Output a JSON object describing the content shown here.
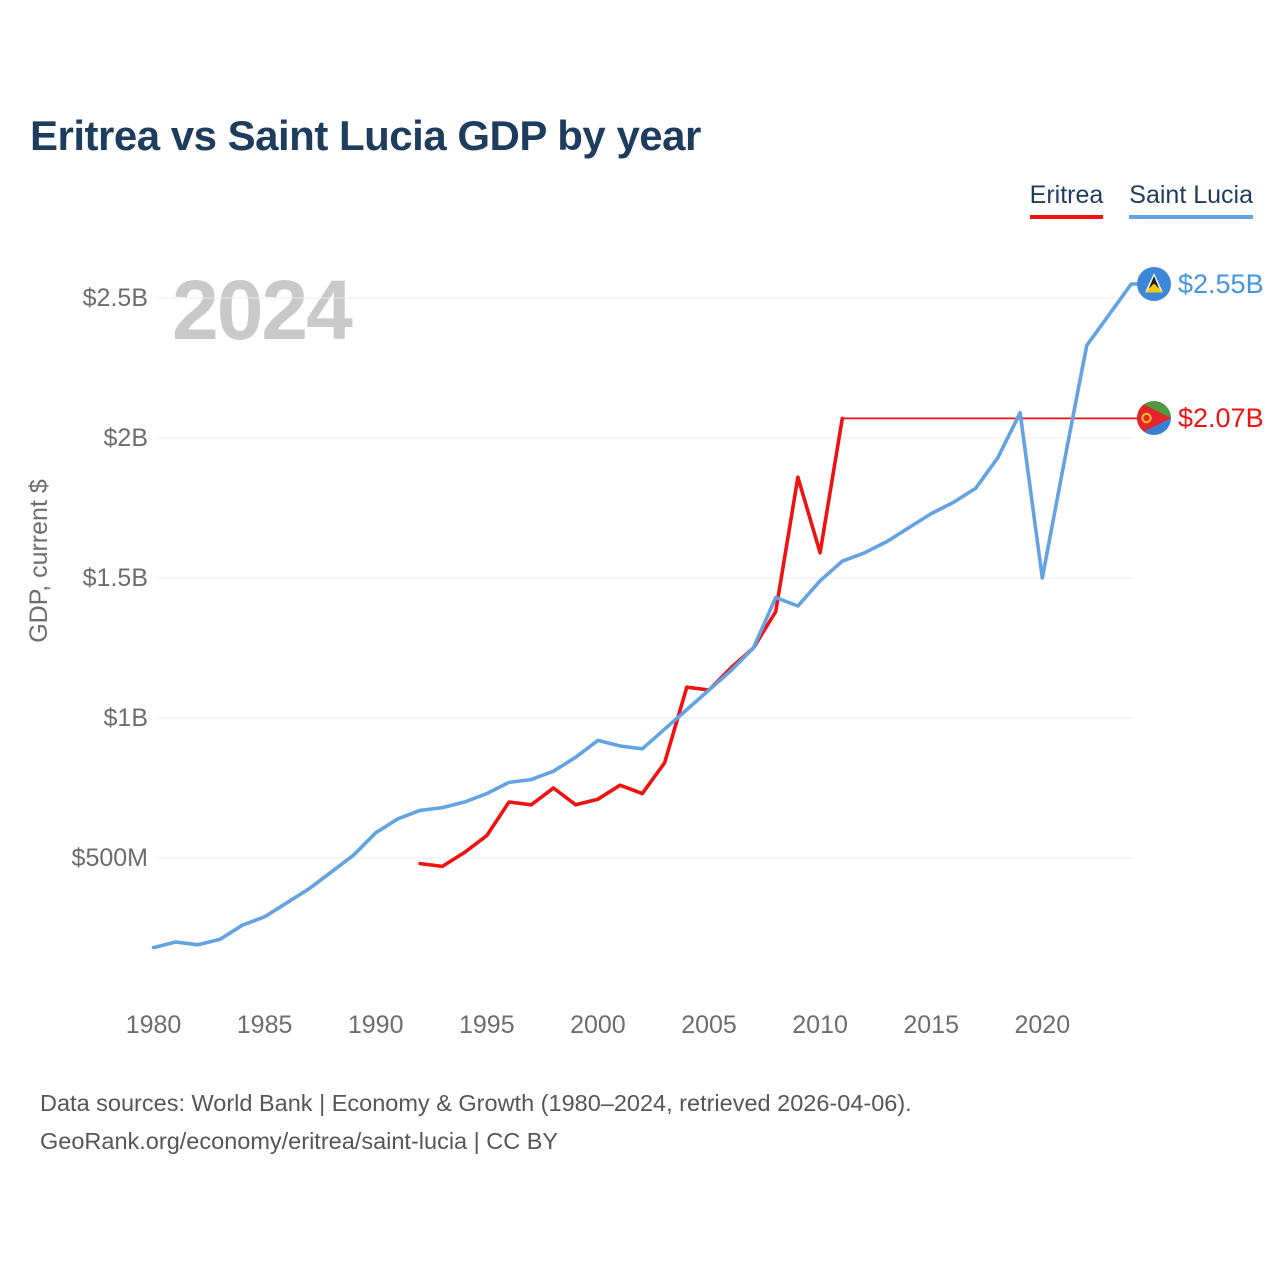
{
  "title": "Eritrea vs Saint Lucia GDP by year",
  "watermark": "2024",
  "legend": {
    "items": [
      {
        "label": "Eritrea",
        "color": "#f01212"
      },
      {
        "label": "Saint Lucia",
        "color": "#64a3e2"
      }
    ]
  },
  "y_axis": {
    "label": "GDP, current $"
  },
  "end_labels": [
    {
      "series": "Saint Lucia",
      "text": "$2.55B",
      "value": 2.55,
      "color": "#4595e6",
      "flag": "saint-lucia"
    },
    {
      "series": "Eritrea",
      "text": "$2.07B",
      "value": 2.07,
      "color": "#f01212",
      "flag": "eritrea"
    }
  ],
  "footer": {
    "line1": "Data sources: World Bank | Economy & Growth (1980–2024, retrieved 2026-04-06).",
    "line2": "GeoRank.org/economy/eritrea/saint-lucia | CC BY"
  },
  "chart_data": {
    "type": "line",
    "title": "Eritrea vs Saint Lucia GDP by year",
    "ylabel": "GDP, current $",
    "unit": "billions of current US$",
    "x_range": [
      1980,
      2024
    ],
    "ylim": [
      0.1,
      2.6
    ],
    "grid": true,
    "legend_position": "top-right",
    "x_ticks": [
      1980,
      1985,
      1990,
      1995,
      2000,
      2005,
      2010,
      2015,
      2020
    ],
    "y_ticks": [
      {
        "value": 0.5,
        "label": "$500M"
      },
      {
        "value": 1.0,
        "label": "$1B"
      },
      {
        "value": 1.5,
        "label": "$1.5B"
      },
      {
        "value": 2.0,
        "label": "$2B"
      },
      {
        "value": 2.5,
        "label": "$2.5B"
      }
    ],
    "series": [
      {
        "name": "Eritrea",
        "color": "#f01212",
        "flat_carried_forward_from": 2011,
        "years": [
          1992,
          1993,
          1994,
          1995,
          1996,
          1997,
          1998,
          1999,
          2000,
          2001,
          2002,
          2003,
          2004,
          2005,
          2006,
          2007,
          2008,
          2009,
          2010,
          2011,
          2012,
          2013,
          2014,
          2015,
          2016,
          2017,
          2018,
          2019,
          2020,
          2021,
          2022,
          2023,
          2024
        ],
        "values": [
          0.48,
          0.47,
          0.52,
          0.58,
          0.7,
          0.69,
          0.75,
          0.69,
          0.71,
          0.76,
          0.73,
          0.84,
          1.11,
          1.1,
          1.18,
          1.25,
          1.38,
          1.86,
          1.59,
          2.07,
          2.07,
          2.07,
          2.07,
          2.07,
          2.07,
          2.07,
          2.07,
          2.07,
          2.07,
          2.07,
          2.07,
          2.07,
          2.07
        ]
      },
      {
        "name": "Saint Lucia",
        "color": "#64a3e2",
        "years": [
          1980,
          1981,
          1982,
          1983,
          1984,
          1985,
          1986,
          1987,
          1988,
          1989,
          1990,
          1991,
          1992,
          1993,
          1994,
          1995,
          1996,
          1997,
          1998,
          1999,
          2000,
          2001,
          2002,
          2003,
          2004,
          2005,
          2006,
          2007,
          2008,
          2009,
          2010,
          2011,
          2012,
          2013,
          2014,
          2015,
          2016,
          2017,
          2018,
          2019,
          2020,
          2021,
          2022,
          2023,
          2024
        ],
        "values": [
          0.18,
          0.2,
          0.19,
          0.21,
          0.26,
          0.29,
          0.34,
          0.39,
          0.45,
          0.51,
          0.59,
          0.64,
          0.67,
          0.68,
          0.7,
          0.73,
          0.77,
          0.78,
          0.81,
          0.86,
          0.92,
          0.9,
          0.89,
          0.96,
          1.03,
          1.1,
          1.17,
          1.25,
          1.43,
          1.4,
          1.49,
          1.56,
          1.59,
          1.63,
          1.68,
          1.73,
          1.77,
          1.82,
          1.93,
          2.09,
          1.5,
          1.92,
          2.33,
          2.44,
          2.55
        ]
      }
    ]
  }
}
